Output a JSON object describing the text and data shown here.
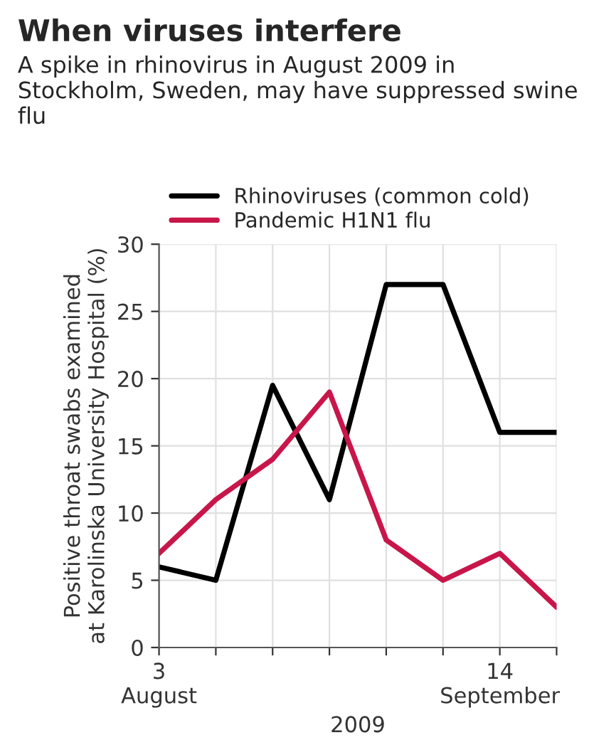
{
  "chart_data": {
    "type": "line",
    "title": "When viruses interfere",
    "subtitle": "A spike in rhinovirus in August 2009 in Stockholm, Sweden, may have suppressed swine flu",
    "xlabel": "2009",
    "ylabel": "Positive throat swabs examined\nat Karolinska University Hospital (%)",
    "x": [
      "2009-08-03",
      "2009-08-10",
      "2009-08-17",
      "2009-08-24",
      "2009-08-31",
      "2009-09-07",
      "2009-09-14",
      "2009-09-21"
    ],
    "series": [
      {
        "name": "Rhinoviruses (common cold)",
        "color": "#000000",
        "values": [
          6,
          5,
          19.5,
          11,
          27,
          27,
          16,
          16
        ]
      },
      {
        "name": "Pandemic H1N1 flu",
        "color": "#c8164a",
        "values": [
          7,
          11,
          14,
          19,
          8,
          5,
          7,
          3
        ]
      }
    ],
    "xlim": [
      "2009-08-03",
      "2009-09-21"
    ],
    "xticks": [
      {
        "value": "2009-08-03",
        "label": "3\nAugust"
      },
      {
        "value": "2009-08-10",
        "label": null
      },
      {
        "value": "2009-08-17",
        "label": null
      },
      {
        "value": "2009-08-24",
        "label": null
      },
      {
        "value": "2009-08-31",
        "label": null
      },
      {
        "value": "2009-09-07",
        "label": null
      },
      {
        "value": "2009-09-14",
        "label": "14\nSeptember"
      },
      {
        "value": "2009-09-21",
        "label": null
      }
    ],
    "ylim": [
      0,
      30
    ],
    "yticks": [
      0,
      5,
      10,
      15,
      20,
      25,
      30
    ],
    "grid": true,
    "legend": "top left",
    "line_style": "solid",
    "marker": "none"
  }
}
